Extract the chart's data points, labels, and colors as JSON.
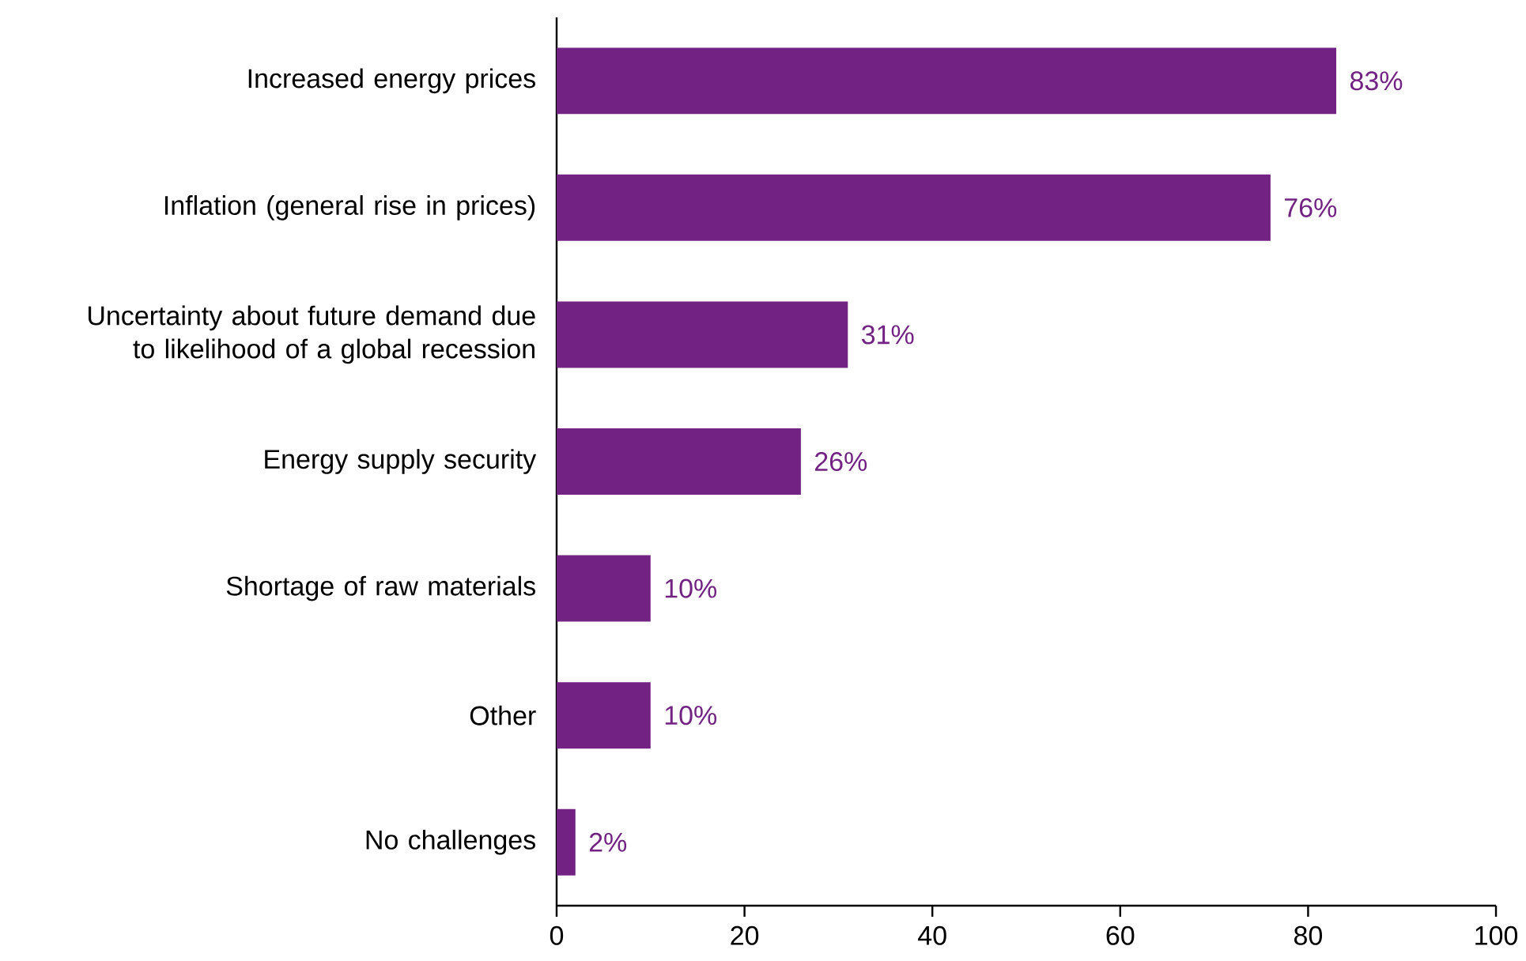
{
  "chart_data": {
    "type": "bar",
    "orientation": "horizontal",
    "categories": [
      "Increased energy prices",
      "Inflation (general rise in prices)",
      "Uncertainty about future demand due to likelihood of a global recession",
      "Energy supply security",
      "Shortage of raw materials",
      "Other",
      "No challenges"
    ],
    "values": [
      83,
      76,
      31,
      26,
      10,
      10,
      2
    ],
    "value_labels": [
      "83%",
      "76%",
      "31%",
      "26%",
      "10%",
      "10%",
      "2%"
    ],
    "color": "#722282",
    "xlim": [
      0,
      100
    ],
    "xticks": [
      0,
      20,
      40,
      60,
      80,
      100
    ]
  }
}
